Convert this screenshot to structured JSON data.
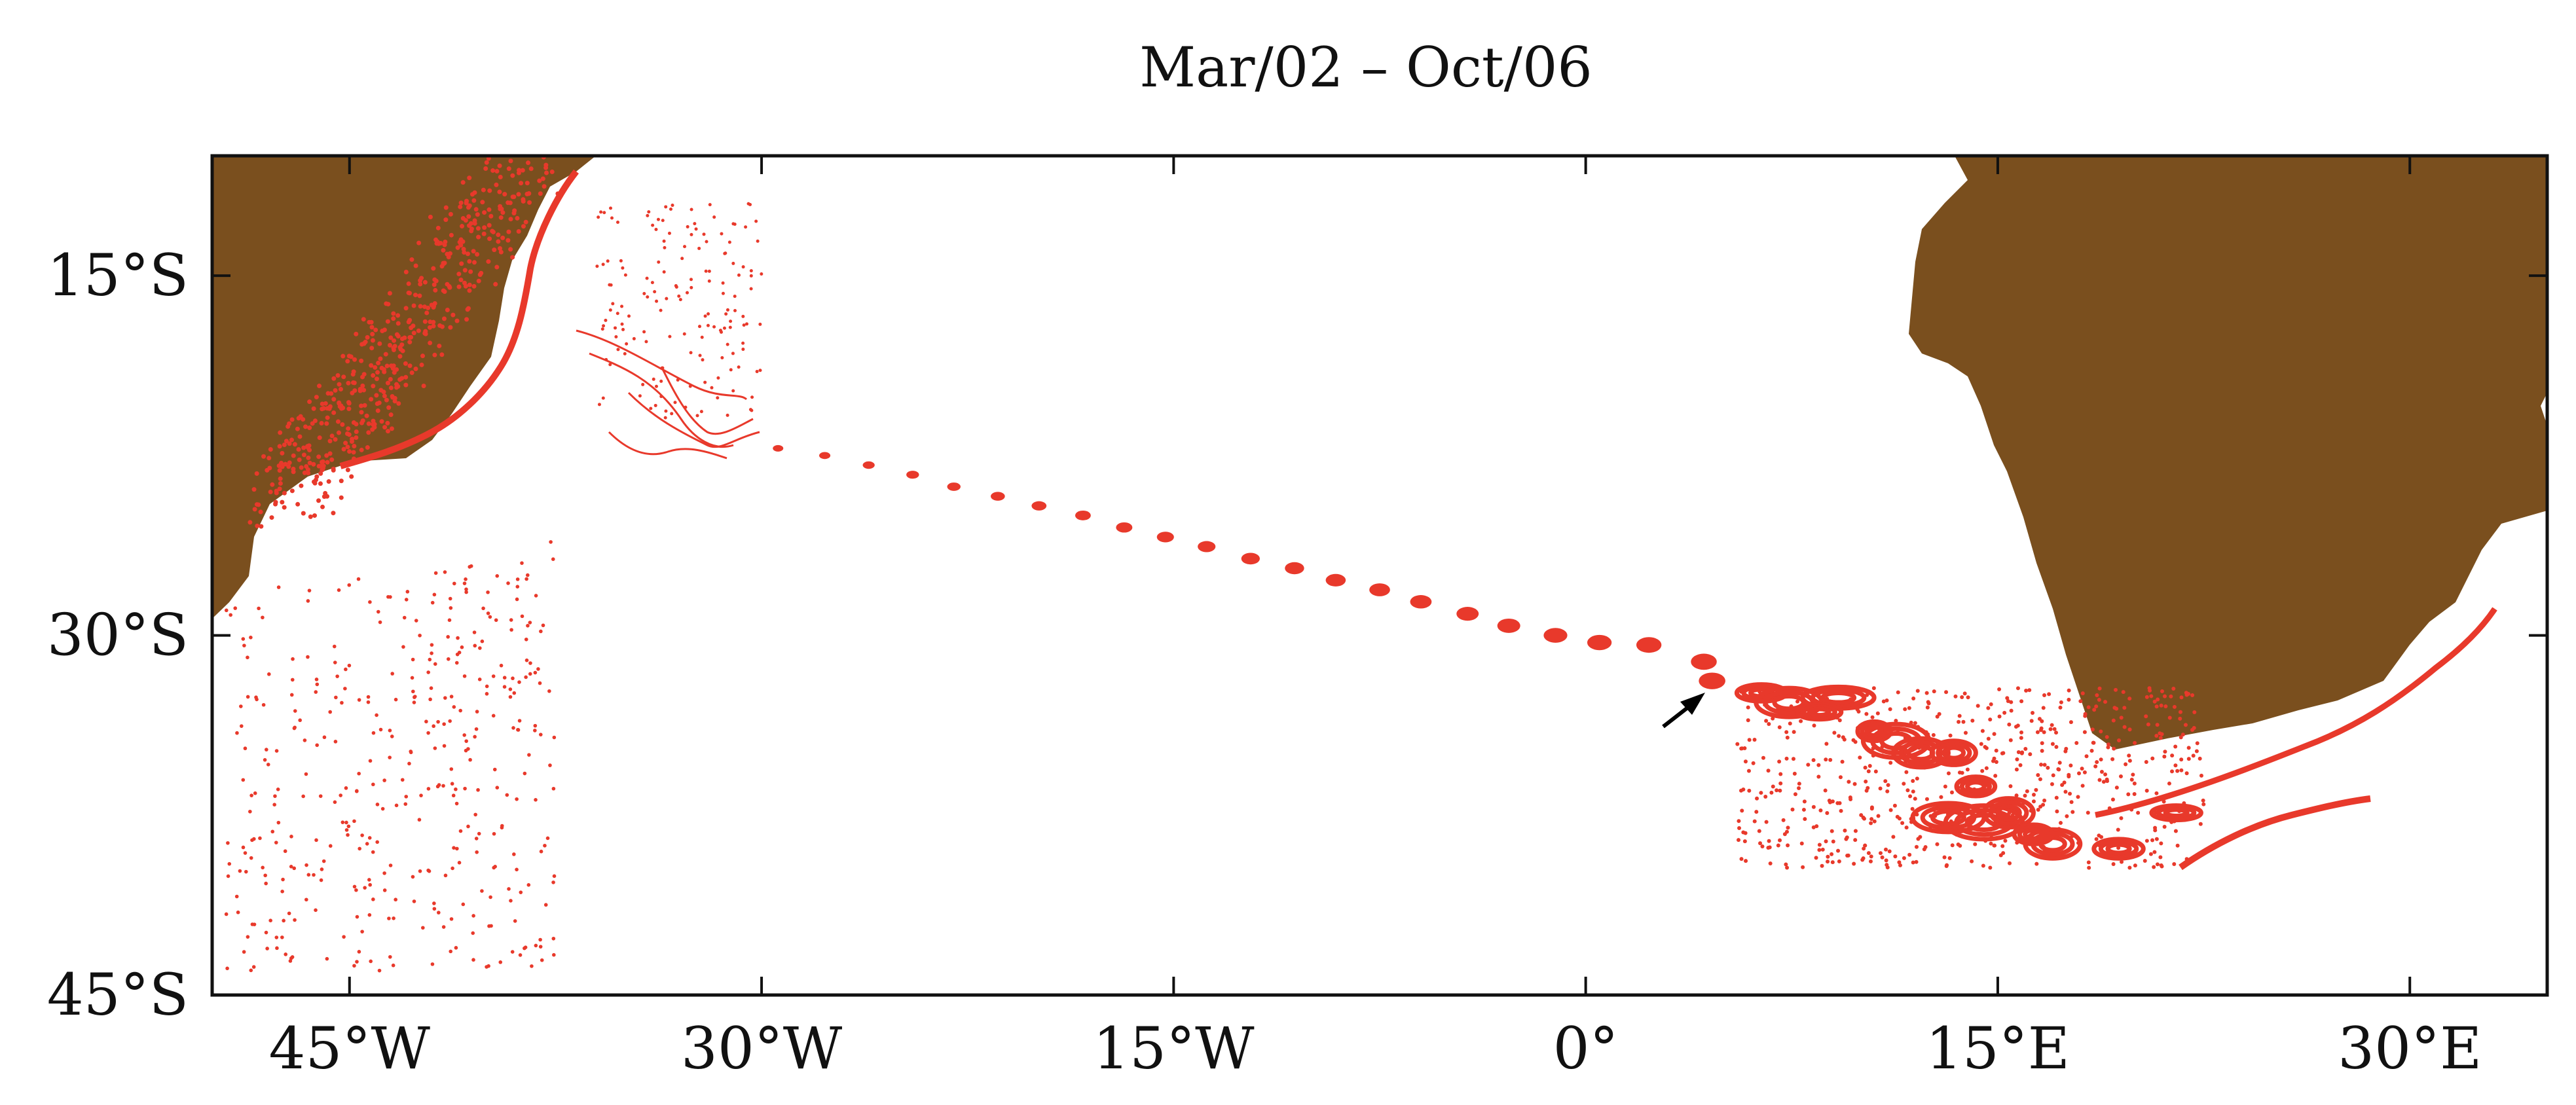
{
  "title": "Mar/02 – Oct/06",
  "colors": {
    "land": "#7a4f1e",
    "particles": "#e8392b",
    "frame": "#111111",
    "arrow": "#000000"
  },
  "map": {
    "lon_range": [
      -50,
      35
    ],
    "lat_range": [
      -45,
      -10
    ],
    "x_ticks": [
      {
        "value": -45,
        "label": "45°W"
      },
      {
        "value": -30,
        "label": "30°W"
      },
      {
        "value": -15,
        "label": "15°W"
      },
      {
        "value": 0,
        "label": "0°"
      },
      {
        "value": 15,
        "label": "15°E"
      },
      {
        "value": 30,
        "label": "30°E"
      }
    ],
    "y_ticks": [
      {
        "value": -15,
        "label": "15°S"
      },
      {
        "value": -30,
        "label": "30°S"
      },
      {
        "value": -45,
        "label": "45°S"
      }
    ]
  },
  "eddy_track": [
    [
      -29.4,
      -22.2
    ],
    [
      -27.7,
      -22.5
    ],
    [
      -26.1,
      -22.9
    ],
    [
      -24.5,
      -23.3
    ],
    [
      -23.0,
      -23.8
    ],
    [
      -21.4,
      -24.2
    ],
    [
      -19.9,
      -24.6
    ],
    [
      -18.3,
      -25.0
    ],
    [
      -16.8,
      -25.5
    ],
    [
      -15.3,
      -25.9
    ],
    [
      -13.8,
      -26.3
    ],
    [
      -12.2,
      -26.8
    ],
    [
      -10.6,
      -27.2
    ],
    [
      -9.1,
      -27.7
    ],
    [
      -7.5,
      -28.1
    ],
    [
      -6.0,
      -28.6
    ],
    [
      -4.3,
      -29.1
    ],
    [
      -2.8,
      -29.6
    ],
    [
      -1.1,
      -30.0
    ],
    [
      0.5,
      -30.3
    ],
    [
      2.3,
      -30.4
    ],
    [
      4.3,
      -31.1
    ],
    [
      4.6,
      -31.9
    ]
  ],
  "eddies_east": [
    [
      6.4,
      -32.4,
      0.9,
      0.35
    ],
    [
      7.4,
      -32.8,
      1.2,
      0.6
    ],
    [
      9.2,
      -32.6,
      1.3,
      0.45
    ],
    [
      8.5,
      -33.2,
      0.8,
      0.3
    ],
    [
      11.3,
      -34.4,
      1.2,
      0.7
    ],
    [
      12.2,
      -34.9,
      1.0,
      0.6
    ],
    [
      13.4,
      -34.9,
      0.8,
      0.5
    ],
    [
      14.2,
      -36.3,
      0.7,
      0.4
    ],
    [
      13.2,
      -37.6,
      1.3,
      0.6
    ],
    [
      14.5,
      -37.8,
      1.4,
      0.7
    ],
    [
      15.4,
      -37.4,
      0.9,
      0.6
    ],
    [
      17.0,
      -38.7,
      1.0,
      0.6
    ],
    [
      19.4,
      -38.9,
      0.9,
      0.4
    ],
    [
      21.5,
      -37.4,
      0.9,
      0.3
    ],
    [
      16.3,
      -38.3,
      0.7,
      0.4
    ],
    [
      10.5,
      -34.0,
      0.6,
      0.4
    ]
  ]
}
